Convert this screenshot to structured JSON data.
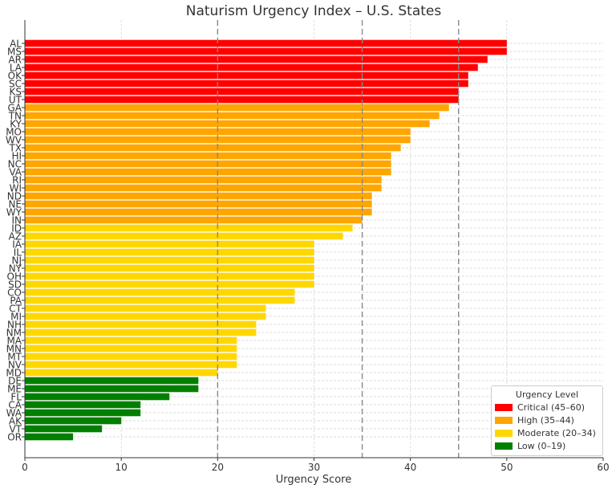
{
  "chart_data": {
    "type": "bar",
    "orientation": "horizontal",
    "title": "Naturism Urgency Index – U.S. States",
    "xlabel": "Urgency Score",
    "ylabel": "",
    "xlim": [
      0,
      60
    ],
    "xticks": [
      "0",
      "10",
      "20",
      "30",
      "40",
      "50",
      "60"
    ],
    "xgrid": true,
    "ygrid": true,
    "threshold_lines": [
      20,
      35,
      45
    ],
    "categories": [
      "AL",
      "MS",
      "AR",
      "LA",
      "OK",
      "SC",
      "KS",
      "UT",
      "GA",
      "TN",
      "KY",
      "MO",
      "WV",
      "TX",
      "HI",
      "NC",
      "VA",
      "RI",
      "WI",
      "ND",
      "NE",
      "WY",
      "IN",
      "ID",
      "AZ",
      "IA",
      "IL",
      "NJ",
      "NY",
      "OH",
      "SD",
      "CO",
      "PA",
      "CT",
      "MI",
      "NH",
      "NM",
      "MA",
      "MN",
      "MT",
      "NV",
      "MD",
      "DE",
      "ME",
      "FL",
      "CA",
      "WA",
      "AK",
      "VT",
      "OR"
    ],
    "values": [
      50,
      50,
      48,
      47,
      46,
      46,
      45,
      45,
      44,
      43,
      42,
      40,
      40,
      39,
      38,
      38,
      38,
      37,
      37,
      36,
      36,
      36,
      35,
      34,
      33,
      30,
      30,
      30,
      30,
      30,
      30,
      28,
      28,
      25,
      25,
      24,
      24,
      22,
      22,
      22,
      22,
      20,
      18,
      18,
      15,
      12,
      12,
      10,
      8,
      5
    ],
    "legend": {
      "title": "Urgency Level",
      "placement": "lower-right",
      "entries": [
        {
          "label": "Critical (45–60)",
          "color": "#ff0000"
        },
        {
          "label": "High (35–44)",
          "color": "#ffa500"
        },
        {
          "label": "Moderate (20–34)",
          "color": "#ffd700"
        },
        {
          "label": "Low (0–19)",
          "color": "#008000"
        }
      ]
    }
  }
}
